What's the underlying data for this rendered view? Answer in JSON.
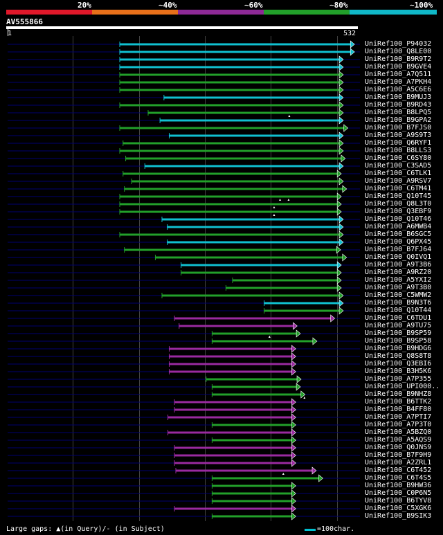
{
  "legend": {
    "segments": [
      {
        "label": "20%",
        "color": "#e0182a"
      },
      {
        "label": "~40%",
        "color": "#e8701a"
      },
      {
        "label": "~60%",
        "color": "#8e2a96"
      },
      {
        "label": "~80%",
        "color": "#22a02a"
      },
      {
        "label": "~100%",
        "color": "#10b8c8"
      }
    ]
  },
  "query": {
    "name": "AV555866",
    "start": "1",
    "end": "532",
    "length": 532
  },
  "grid_positions": [
    100,
    200,
    300,
    400,
    500
  ],
  "colors": {
    "cyan": "#10c0d0",
    "green": "#22a02a",
    "purple": "#9a2aa0",
    "background_line": "#000070",
    "gap": "#ffffff"
  },
  "hits": [
    {
      "label": "UniRef100_P94032",
      "qstart": 171,
      "qend": 527,
      "color": "cyan",
      "gaps": []
    },
    {
      "label": "UniRef100_Q8LE00",
      "qstart": 171,
      "qend": 527,
      "color": "cyan",
      "gaps": []
    },
    {
      "label": "UniRef100_B9R9T2",
      "qstart": 171,
      "qend": 510,
      "color": "cyan",
      "gaps": []
    },
    {
      "label": "UniRef100_B9GVE4",
      "qstart": 171,
      "qend": 510,
      "color": "cyan",
      "gaps": []
    },
    {
      "label": "UniRef100_A7Q511",
      "qstart": 171,
      "qend": 510,
      "color": "green",
      "gaps": []
    },
    {
      "label": "UniRef100_A7PKH4",
      "qstart": 171,
      "qend": 510,
      "color": "green",
      "gaps": []
    },
    {
      "label": "UniRef100_A5C6E6",
      "qstart": 171,
      "qend": 510,
      "color": "green",
      "gaps": []
    },
    {
      "label": "UniRef100_B9MUJ3",
      "qstart": 238,
      "qend": 510,
      "color": "cyan",
      "gaps": []
    },
    {
      "label": "UniRef100_B9RD43",
      "qstart": 171,
      "qend": 510,
      "color": "green",
      "gaps": []
    },
    {
      "label": "UniRef100_B8LPQ5",
      "qstart": 214,
      "qend": 510,
      "color": "green",
      "gaps": [
        428
      ]
    },
    {
      "label": "UniRef100_B9GPA2",
      "qstart": 232,
      "qend": 510,
      "color": "cyan",
      "gaps": []
    },
    {
      "label": "UniRef100_B7FJS0",
      "qstart": 171,
      "qend": 517,
      "color": "green",
      "gaps": []
    },
    {
      "label": "UniRef100_A9S9T3",
      "qstart": 246,
      "qend": 510,
      "color": "cyan",
      "gaps": []
    },
    {
      "label": "UniRef100_Q6RYF1",
      "qstart": 176,
      "qend": 510,
      "color": "green",
      "gaps": []
    },
    {
      "label": "UniRef100_B8LLS3",
      "qstart": 171,
      "qend": 510,
      "color": "green",
      "gaps": []
    },
    {
      "label": "UniRef100_C6SY80",
      "qstart": 180,
      "qend": 513,
      "color": "green",
      "gaps": []
    },
    {
      "label": "UniRef100_C3SAD5",
      "qstart": 209,
      "qend": 510,
      "color": "cyan",
      "gaps": []
    },
    {
      "label": "UniRef100_C6TLK1",
      "qstart": 176,
      "qend": 507,
      "color": "green",
      "gaps": []
    },
    {
      "label": "UniRef100_A9RSV7",
      "qstart": 189,
      "qend": 510,
      "color": "green",
      "gaps": []
    },
    {
      "label": "UniRef100_C6TM41",
      "qstart": 178,
      "qend": 515,
      "color": "green",
      "gaps": []
    },
    {
      "label": "UniRef100_Q10T45",
      "qstart": 171,
      "qend": 507,
      "color": "green",
      "gaps": [
        414,
        427
      ]
    },
    {
      "label": "UniRef100_Q8L3T0",
      "qstart": 171,
      "qend": 507,
      "color": "green",
      "gaps": [
        405
      ]
    },
    {
      "label": "UniRef100_Q3EBF9",
      "qstart": 171,
      "qend": 507,
      "color": "green",
      "gaps": [
        405
      ]
    },
    {
      "label": "UniRef100_Q10T46",
      "qstart": 235,
      "qend": 510,
      "color": "cyan",
      "gaps": []
    },
    {
      "label": "UniRef100_A6MWB4",
      "qstart": 243,
      "qend": 510,
      "color": "cyan",
      "gaps": []
    },
    {
      "label": "UniRef100_B6SGC5",
      "qstart": 171,
      "qend": 510,
      "color": "green",
      "gaps": []
    },
    {
      "label": "UniRef100_Q6PX45",
      "qstart": 243,
      "qend": 510,
      "color": "cyan",
      "gaps": []
    },
    {
      "label": "UniRef100_B7FJ64",
      "qstart": 178,
      "qend": 506,
      "color": "green",
      "gaps": []
    },
    {
      "label": "UniRef100_Q0IVQ1",
      "qstart": 225,
      "qend": 515,
      "color": "green",
      "gaps": []
    },
    {
      "label": "UniRef100_A9T3B6",
      "qstart": 264,
      "qend": 507,
      "color": "cyan",
      "gaps": []
    },
    {
      "label": "UniRef100_A9RZ20",
      "qstart": 264,
      "qend": 507,
      "color": "green",
      "gaps": []
    },
    {
      "label": "UniRef100_A5YXI2",
      "qstart": 342,
      "qend": 507,
      "color": "green",
      "gaps": []
    },
    {
      "label": "UniRef100_A9T3B0",
      "qstart": 332,
      "qend": 507,
      "color": "green",
      "gaps": []
    },
    {
      "label": "UniRef100_C5WMW2",
      "qstart": 235,
      "qend": 510,
      "color": "green",
      "gaps": []
    },
    {
      "label": "UniRef100_B9N3T6",
      "qstart": 390,
      "qend": 510,
      "color": "cyan",
      "gaps": []
    },
    {
      "label": "UniRef100_Q10T44",
      "qstart": 390,
      "qend": 510,
      "color": "green",
      "gaps": []
    },
    {
      "label": "UniRef100_C6TDU1",
      "qstart": 254,
      "qend": 497,
      "color": "purple",
      "gaps": []
    },
    {
      "label": "UniRef100_A9TU75",
      "qstart": 261,
      "qend": 440,
      "color": "purple",
      "gaps": []
    },
    {
      "label": "UniRef100_B9SP59",
      "qstart": 311,
      "qend": 445,
      "color": "green",
      "gaps": [
        398
      ]
    },
    {
      "label": "UniRef100_B9SP58",
      "qstart": 311,
      "qend": 470,
      "color": "green",
      "gaps": []
    },
    {
      "label": "UniRef100_B9HDG6",
      "qstart": 246,
      "qend": 438,
      "color": "purple",
      "gaps": []
    },
    {
      "label": "UniRef100_Q8S8T8",
      "qstart": 246,
      "qend": 438,
      "color": "purple",
      "gaps": []
    },
    {
      "label": "UniRef100_Q3EBI6",
      "qstart": 246,
      "qend": 438,
      "color": "purple",
      "gaps": []
    },
    {
      "label": "UniRef100_B3H5K6",
      "qstart": 246,
      "qend": 438,
      "color": "purple",
      "gaps": []
    },
    {
      "label": "UniRef100_A7P355",
      "qstart": 302,
      "qend": 446,
      "color": "green",
      "gaps": []
    },
    {
      "label": "UniRef100_UPI000..",
      "qstart": 311,
      "qend": 445,
      "color": "green",
      "gaps": []
    },
    {
      "label": "UniRef100_B9NHZ8",
      "qstart": 311,
      "qend": 452,
      "color": "green",
      "gaps": [
        451
      ]
    },
    {
      "label": "UniRef100_B6TTK2",
      "qstart": 254,
      "qend": 438,
      "color": "purple",
      "gaps": []
    },
    {
      "label": "UniRef100_B4FF80",
      "qstart": 254,
      "qend": 438,
      "color": "purple",
      "gaps": []
    },
    {
      "label": "UniRef100_A7PTI7",
      "qstart": 244,
      "qend": 438,
      "color": "purple",
      "gaps": []
    },
    {
      "label": "UniRef100_A7P3T0",
      "qstart": 311,
      "qend": 438,
      "color": "green",
      "gaps": []
    },
    {
      "label": "UniRef100_A5BZQ0",
      "qstart": 244,
      "qend": 438,
      "color": "purple",
      "gaps": []
    },
    {
      "label": "UniRef100_A5AQS9",
      "qstart": 311,
      "qend": 438,
      "color": "green",
      "gaps": []
    },
    {
      "label": "UniRef100_Q0JNS9",
      "qstart": 254,
      "qend": 438,
      "color": "purple",
      "gaps": []
    },
    {
      "label": "UniRef100_B7F9H9",
      "qstart": 254,
      "qend": 438,
      "color": "purple",
      "gaps": []
    },
    {
      "label": "UniRef100_A2ZRL1",
      "qstart": 254,
      "qend": 438,
      "color": "purple",
      "gaps": []
    },
    {
      "label": "UniRef100_C6T452",
      "qstart": 256,
      "qend": 469,
      "color": "purple",
      "gaps": [
        419
      ]
    },
    {
      "label": "UniRef100_C6T4S5",
      "qstart": 311,
      "qend": 479,
      "color": "green",
      "gaps": []
    },
    {
      "label": "UniRef100_B9HW36",
      "qstart": 311,
      "qend": 438,
      "color": "green",
      "gaps": []
    },
    {
      "label": "UniRef100_C0P6N5",
      "qstart": 311,
      "qend": 438,
      "color": "green",
      "gaps": []
    },
    {
      "label": "UniRef100_B6TYV8",
      "qstart": 311,
      "qend": 438,
      "color": "green",
      "gaps": []
    },
    {
      "label": "UniRef100_C5XGK6",
      "qstart": 254,
      "qend": 438,
      "color": "purple",
      "gaps": []
    },
    {
      "label": "UniRef100_B9SIK3",
      "qstart": 311,
      "qend": 438,
      "color": "green",
      "gaps": []
    }
  ],
  "footer": {
    "gaps_text": "Large gaps: ▲(in Query)/- (in Subject)",
    "scale_text": "=100char."
  }
}
